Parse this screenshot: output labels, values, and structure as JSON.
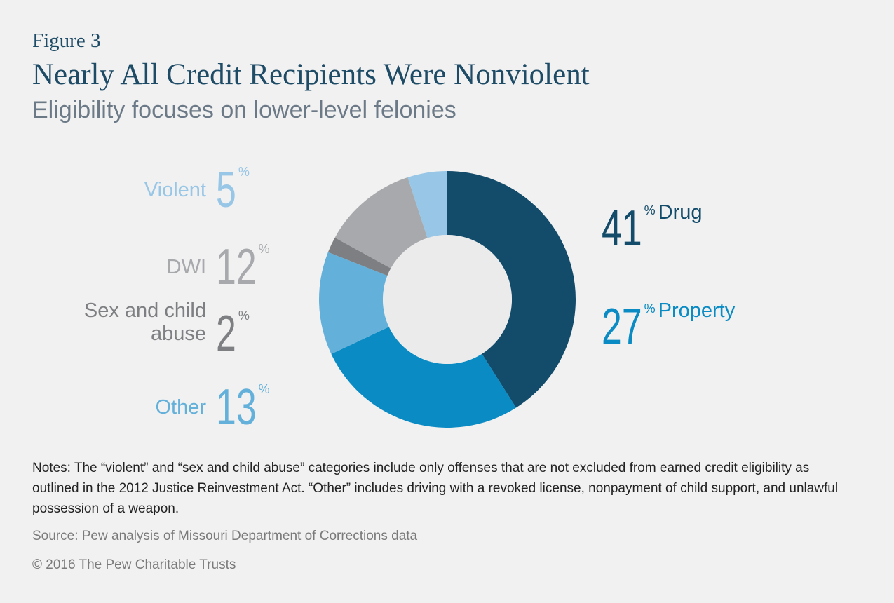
{
  "figure_label": "Figure 3",
  "title": "Nearly All Credit Recipients Were Nonviolent",
  "subtitle": "Eligibility focuses on lower-level felonies",
  "chart_data": {
    "type": "pie",
    "style": "donut",
    "title": "Nearly All Credit Recipients Were Nonviolent",
    "unit": "%",
    "slices": [
      {
        "name": "Drug",
        "value": 41,
        "value_label": "41",
        "label_lines": [
          "Drug"
        ],
        "color": "#134b6b",
        "label_color": "#134b6b",
        "side": "right"
      },
      {
        "name": "Property",
        "value": 27,
        "value_label": "27",
        "label_lines": [
          "Property"
        ],
        "color": "#0a8bc3",
        "label_color": "#0a8bc3",
        "side": "right"
      },
      {
        "name": "Other",
        "value": 13,
        "value_label": "13",
        "label_lines": [
          "Other"
        ],
        "color": "#63b0da",
        "label_color": "#63b0da",
        "side": "left"
      },
      {
        "name": "Sex and child abuse",
        "value": 2,
        "value_label": "2",
        "label_lines": [
          "Sex and child",
          "abuse"
        ],
        "color": "#7d7f82",
        "label_color": "#7d7f82",
        "side": "left"
      },
      {
        "name": "DWI",
        "value": 12,
        "value_label": "12",
        "label_lines": [
          "DWI"
        ],
        "color": "#a7a9ac",
        "label_color": "#a7a9ac",
        "side": "left"
      },
      {
        "name": "Violent",
        "value": 5,
        "value_label": "5",
        "label_lines": [
          "Violent"
        ],
        "color": "#98c6e6",
        "label_color": "#98c6e6",
        "side": "left"
      }
    ],
    "hole_color": "#ebebeb"
  },
  "notes": "Notes: The “violent” and “sex and child abuse” categories include only offenses that are not excluded from earned credit eligibility as outlined in the 2012 Justice Reinvestment Act. “Other” includes driving with a revoked license, nonpayment of child support, and unlawful possession of a weapon.",
  "source": "Source: Pew analysis of Missouri Department of Corrections data",
  "copyright": "© 2016 The Pew Charitable Trusts"
}
